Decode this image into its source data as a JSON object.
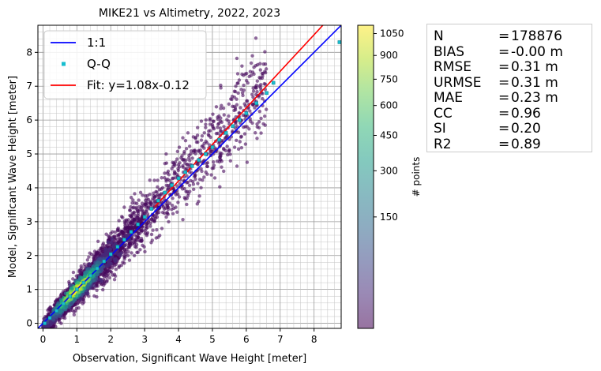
{
  "chart_data": {
    "type": "scatter",
    "title": "MIKE21 vs Altimetry, 2022, 2023",
    "xlabel": "Observation, Significant Wave Height [meter]",
    "ylabel": "Model, Significant Wave Height [meter]",
    "xlim": [
      -0.15,
      8.8
    ],
    "ylim": [
      -0.15,
      8.8
    ],
    "xticks": [
      0,
      1,
      2,
      3,
      4,
      5,
      6,
      7,
      8
    ],
    "yticks": [
      0,
      1,
      2,
      3,
      4,
      5,
      6,
      7,
      8
    ],
    "grid": true,
    "legend_position": "upper-left",
    "legend": [
      {
        "label": "1:1",
        "color": "#0000ff",
        "kind": "line"
      },
      {
        "label": "Q-Q",
        "color": "#17becf",
        "kind": "marker"
      },
      {
        "label": "Fit: y=1.08x-0.12",
        "color": "#ff0000",
        "kind": "line"
      }
    ],
    "fit": {
      "slope": 1.08,
      "intercept": -0.12
    },
    "qq_points": [
      [
        0.05,
        0.0
      ],
      [
        0.2,
        0.16
      ],
      [
        0.4,
        0.37
      ],
      [
        0.6,
        0.58
      ],
      [
        0.8,
        0.79
      ],
      [
        1.0,
        1.0
      ],
      [
        1.2,
        1.2
      ],
      [
        1.4,
        1.41
      ],
      [
        1.6,
        1.62
      ],
      [
        1.8,
        1.83
      ],
      [
        2.0,
        2.04
      ],
      [
        2.2,
        2.26
      ],
      [
        2.4,
        2.47
      ],
      [
        2.6,
        2.7
      ],
      [
        2.8,
        2.92
      ],
      [
        3.0,
        3.14
      ],
      [
        3.2,
        3.38
      ],
      [
        3.4,
        3.62
      ],
      [
        3.6,
        3.86
      ],
      [
        3.8,
        4.08
      ],
      [
        4.0,
        4.28
      ],
      [
        4.2,
        4.46
      ],
      [
        4.4,
        4.64
      ],
      [
        4.6,
        4.82
      ],
      [
        4.8,
        5.0
      ],
      [
        5.0,
        5.2
      ],
      [
        5.2,
        5.42
      ],
      [
        5.4,
        5.62
      ],
      [
        5.6,
        5.82
      ],
      [
        5.8,
        6.0
      ],
      [
        6.0,
        6.2
      ],
      [
        6.3,
        6.5
      ],
      [
        6.6,
        6.8
      ],
      [
        6.8,
        7.1
      ],
      [
        8.75,
        8.3
      ]
    ],
    "colorbar": {
      "label": "# points",
      "ticks": [
        150,
        300,
        450,
        600,
        750,
        900,
        1050
      ],
      "max": 1110,
      "colors": [
        "#440154",
        "#482878",
        "#3e4989",
        "#31688e",
        "#26828e",
        "#1f9e89",
        "#35b779",
        "#6ece58",
        "#b5de2b",
        "#fde725"
      ]
    }
  },
  "stats": [
    {
      "key": "N",
      "value": "178876"
    },
    {
      "key": "BIAS",
      "value": "-0.00 m"
    },
    {
      "key": "RMSE",
      "value": "0.31 m"
    },
    {
      "key": "URMSE",
      "value": "0.31 m"
    },
    {
      "key": "MAE",
      "value": "0.23 m"
    },
    {
      "key": "CC",
      "value": "0.96"
    },
    {
      "key": "SI",
      "value": "0.20"
    },
    {
      "key": "R2",
      "value": "0.89"
    }
  ]
}
